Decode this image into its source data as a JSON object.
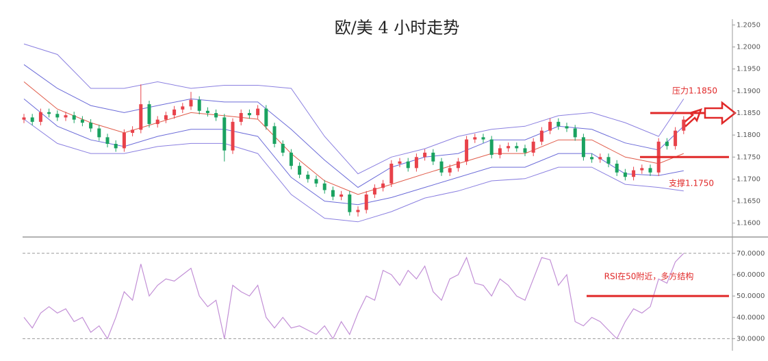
{
  "chart_data": [
    {
      "type": "candlestick",
      "title": "欧/美 4 小时走势",
      "up_color": "#e8424a",
      "down_color": "#1aa260",
      "open": [
        1.1835,
        1.184,
        1.183,
        1.1852,
        1.1848,
        1.184,
        1.1845,
        1.1835,
        1.1828,
        1.1815,
        1.1795,
        1.178,
        1.177,
        1.1805,
        1.1812,
        1.187,
        1.1825,
        1.1835,
        1.1845,
        1.1858,
        1.1865,
        1.188,
        1.1855,
        1.185,
        1.184,
        1.1765,
        1.183,
        1.185,
        1.1845,
        1.186,
        1.182,
        1.178,
        1.176,
        1.173,
        1.171,
        1.17,
        1.169,
        1.1675,
        1.166,
        1.1665,
        1.1625,
        1.163,
        1.1665,
        1.168,
        1.169,
        1.1735,
        1.174,
        1.1725,
        1.175,
        1.176,
        1.174,
        1.1715,
        1.1725,
        1.174,
        1.179,
        1.1795,
        1.179,
        1.1755,
        1.177,
        1.1775,
        1.177,
        1.176,
        1.1785,
        1.181,
        1.183,
        1.182,
        1.1815,
        1.1795,
        1.175,
        1.1745,
        1.175,
        1.1735,
        1.1715,
        1.1705,
        1.172,
        1.1725,
        1.1715,
        1.1785,
        1.1775,
        1.181
      ],
      "high": [
        1.1848,
        1.1848,
        1.186,
        1.186,
        1.1856,
        1.1853,
        1.1853,
        1.1843,
        1.1836,
        1.1823,
        1.1803,
        1.1788,
        1.1813,
        1.182,
        1.1915,
        1.1878,
        1.1843,
        1.1853,
        1.1866,
        1.1873,
        1.1898,
        1.1888,
        1.1863,
        1.1858,
        1.1848,
        1.1838,
        1.1858,
        1.1858,
        1.1868,
        1.1868,
        1.1828,
        1.1788,
        1.1768,
        1.1738,
        1.1718,
        1.1708,
        1.1698,
        1.1683,
        1.1673,
        1.1673,
        1.1638,
        1.1673,
        1.1688,
        1.1698,
        1.1743,
        1.1748,
        1.1748,
        1.1758,
        1.1768,
        1.1768,
        1.1748,
        1.1733,
        1.1748,
        1.1798,
        1.1803,
        1.1803,
        1.1798,
        1.1778,
        1.1783,
        1.1783,
        1.1778,
        1.1793,
        1.1818,
        1.1838,
        1.1838,
        1.1828,
        1.1823,
        1.1803,
        1.1758,
        1.1758,
        1.1758,
        1.1743,
        1.1723,
        1.1728,
        1.1733,
        1.1733,
        1.1793,
        1.1793,
        1.1818,
        1.1843
      ],
      "low": [
        1.1827,
        1.1822,
        1.1822,
        1.184,
        1.1832,
        1.1832,
        1.1827,
        1.182,
        1.1807,
        1.1787,
        1.1772,
        1.1762,
        1.1762,
        1.1797,
        1.1804,
        1.1817,
        1.1817,
        1.1827,
        1.1837,
        1.185,
        1.1857,
        1.1847,
        1.1842,
        1.1832,
        1.174,
        1.1757,
        1.1822,
        1.1837,
        1.1837,
        1.1812,
        1.1772,
        1.1752,
        1.1722,
        1.1702,
        1.1692,
        1.1682,
        1.1667,
        1.1652,
        1.1652,
        1.1617,
        1.1615,
        1.1622,
        1.1657,
        1.1672,
        1.1682,
        1.1727,
        1.1717,
        1.1717,
        1.1742,
        1.1732,
        1.1707,
        1.1707,
        1.1717,
        1.1732,
        1.1782,
        1.1782,
        1.1747,
        1.1747,
        1.1762,
        1.1762,
        1.1752,
        1.1752,
        1.1777,
        1.1802,
        1.1812,
        1.1807,
        1.1787,
        1.1742,
        1.1737,
        1.1737,
        1.1727,
        1.1707,
        1.1697,
        1.1697,
        1.1712,
        1.1707,
        1.1707,
        1.1767,
        1.1767,
        1.1802
      ],
      "close": [
        1.184,
        1.183,
        1.1852,
        1.1848,
        1.184,
        1.1845,
        1.1835,
        1.1828,
        1.1815,
        1.1795,
        1.178,
        1.177,
        1.1805,
        1.1812,
        1.187,
        1.1825,
        1.1835,
        1.1845,
        1.1858,
        1.1865,
        1.188,
        1.1855,
        1.185,
        1.184,
        1.1765,
        1.183,
        1.185,
        1.1845,
        1.186,
        1.182,
        1.178,
        1.176,
        1.173,
        1.171,
        1.17,
        1.169,
        1.1675,
        1.166,
        1.1665,
        1.1625,
        1.163,
        1.1665,
        1.168,
        1.169,
        1.1735,
        1.174,
        1.1725,
        1.175,
        1.176,
        1.174,
        1.1715,
        1.1725,
        1.174,
        1.179,
        1.1795,
        1.179,
        1.1755,
        1.177,
        1.1775,
        1.177,
        1.176,
        1.1785,
        1.181,
        1.183,
        1.182,
        1.1815,
        1.1795,
        1.175,
        1.1745,
        1.175,
        1.1735,
        1.1715,
        1.1705,
        1.172,
        1.1725,
        1.1715,
        1.1785,
        1.1775,
        1.181,
        1.1835
      ],
      "bands": [
        {
          "color": "#8a7fe0",
          "x": [
            0,
            4,
            8,
            12,
            16,
            20,
            24,
            28,
            32,
            36,
            40,
            44,
            48,
            52,
            56,
            60,
            64,
            68,
            72,
            76,
            79
          ],
          "values": [
            1.2007,
            1.1983,
            1.1906,
            1.1906,
            1.1921,
            1.1906,
            1.1913,
            1.1913,
            1.1906,
            1.1797,
            1.1712,
            1.175,
            1.1769,
            1.1797,
            1.1813,
            1.182,
            1.1844,
            1.1851,
            1.1828,
            1.1797,
            1.1882
          ]
        },
        {
          "color": "#6a6ad8",
          "x": [
            0,
            4,
            8,
            12,
            16,
            20,
            24,
            28,
            32,
            36,
            40,
            44,
            48,
            52,
            56,
            60,
            64,
            68,
            72,
            76,
            79
          ],
          "values": [
            1.196,
            1.1906,
            1.1867,
            1.1851,
            1.1867,
            1.1882,
            1.1875,
            1.1875,
            1.1813,
            1.1743,
            1.1681,
            1.1727,
            1.175,
            1.1758,
            1.1789,
            1.1789,
            1.182,
            1.1813,
            1.1782,
            1.1766,
            1.182
          ]
        },
        {
          "color": "#e05a48",
          "x": [
            0,
            4,
            8,
            12,
            16,
            20,
            24,
            28,
            32,
            36,
            40,
            44,
            48,
            52,
            56,
            60,
            64,
            68,
            72,
            76,
            79
          ],
          "values": [
            1.1921,
            1.1859,
            1.1828,
            1.1805,
            1.1828,
            1.1851,
            1.1844,
            1.1836,
            1.1758,
            1.1696,
            1.1665,
            1.1688,
            1.1712,
            1.1735,
            1.1758,
            1.1758,
            1.1789,
            1.1789,
            1.175,
            1.1735,
            1.1758
          ]
        },
        {
          "color": "#6a6ad8",
          "x": [
            0,
            4,
            8,
            12,
            16,
            20,
            24,
            28,
            32,
            36,
            40,
            44,
            48,
            52,
            56,
            60,
            64,
            68,
            72,
            76,
            79
          ],
          "values": [
            1.1882,
            1.182,
            1.1789,
            1.1774,
            1.1797,
            1.1813,
            1.1813,
            1.1797,
            1.1704,
            1.165,
            1.1642,
            1.1658,
            1.1681,
            1.1704,
            1.1727,
            1.1727,
            1.1758,
            1.1758,
            1.1712,
            1.1708,
            1.1719
          ]
        },
        {
          "color": "#8a7fe0",
          "x": [
            0,
            4,
            8,
            12,
            16,
            20,
            24,
            28,
            32,
            36,
            40,
            44,
            48,
            52,
            56,
            60,
            64,
            68,
            72,
            76,
            79
          ],
          "values": [
            1.1836,
            1.1781,
            1.1758,
            1.1758,
            1.1774,
            1.1781,
            1.1781,
            1.1758,
            1.1665,
            1.1611,
            1.1603,
            1.1626,
            1.1657,
            1.1673,
            1.1696,
            1.1701,
            1.1727,
            1.1727,
            1.1688,
            1.1681,
            1.1673
          ]
        }
      ],
      "ylim": [
        1.157,
        1.206
      ],
      "yticks": [
        {
          "value": 1.16,
          "label": "1.1600"
        },
        {
          "value": 1.165,
          "label": "1.1650"
        },
        {
          "value": 1.17,
          "label": "1.1700"
        },
        {
          "value": 1.175,
          "label": "1.1750"
        },
        {
          "value": 1.18,
          "label": "1.1800"
        },
        {
          "value": 1.185,
          "label": "1.1850"
        },
        {
          "value": 1.19,
          "label": "1.1900"
        },
        {
          "value": 1.195,
          "label": "1.1950"
        },
        {
          "value": 1.2,
          "label": "1.2000"
        },
        {
          "value": 1.205,
          "label": "1.2050"
        }
      ],
      "annotations": [
        {
          "text": "压力1.1850",
          "value": 1.185,
          "color": "#e02828"
        },
        {
          "text": "支撑1.1750",
          "value": 1.175,
          "color": "#e02828"
        }
      ]
    },
    {
      "type": "line",
      "color": "#c28fd6",
      "values": [
        40,
        35,
        42,
        45,
        42,
        44,
        38,
        40,
        33,
        36,
        30,
        40,
        52,
        48,
        65,
        50,
        55,
        58,
        57,
        60,
        63,
        50,
        45,
        48,
        30,
        55,
        52,
        50,
        55,
        40,
        35,
        40,
        35,
        36,
        34,
        32,
        36,
        30,
        38,
        32,
        42,
        50,
        48,
        62,
        60,
        55,
        62,
        58,
        64,
        52,
        48,
        58,
        60,
        68,
        56,
        55,
        50,
        58,
        55,
        50,
        48,
        58,
        68,
        67,
        55,
        60,
        38,
        36,
        40,
        38,
        34,
        30,
        38,
        44,
        42,
        45,
        58,
        56,
        66,
        70
      ],
      "ylim": [
        25,
        77
      ],
      "yticks": [
        {
          "value": 30,
          "label": "30.0000"
        },
        {
          "value": 40,
          "label": "40.0000"
        },
        {
          "value": 50,
          "label": "50.0000"
        },
        {
          "value": 60,
          "label": "60.0000"
        },
        {
          "value": 70,
          "label": "70.0000"
        }
      ],
      "dashed_levels": [
        70,
        30
      ],
      "annotations": [
        {
          "text": "RSI在50附近，多方结构",
          "value": 50,
          "color": "#e02828"
        }
      ]
    }
  ]
}
